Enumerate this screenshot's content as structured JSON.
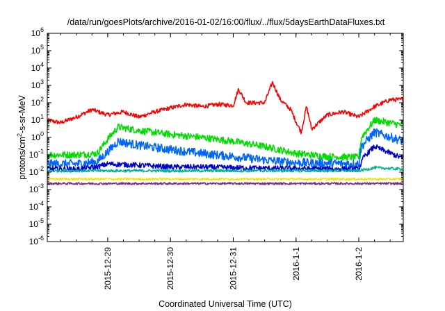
{
  "chart_data": {
    "type": "line",
    "title": "/data/run/goesPlots/archive/2016-01-02/16:00/flux/../flux/5daysEarthDataFluxes.txt",
    "xlabel": "Coordinated Universal Time (UTC)",
    "ylabel": "protons/cm²-s-sr-MeV",
    "ylabel_parts": {
      "base": "protons/cm",
      "sup": "2",
      "rest": "-s-sr-MeV"
    },
    "yscale": "log",
    "ylim": [
      1e-06,
      1000000.0
    ],
    "y_ticks": [
      {
        "value": 1e-06,
        "base": "10",
        "exp": "-6"
      },
      {
        "value": 1e-05,
        "base": "10",
        "exp": "-5"
      },
      {
        "value": 0.0001,
        "base": "10",
        "exp": "-4"
      },
      {
        "value": 0.001,
        "base": "10",
        "exp": "-3"
      },
      {
        "value": 0.01,
        "base": "10",
        "exp": "-2"
      },
      {
        "value": 0.1,
        "base": "10",
        "exp": "-1"
      },
      {
        "value": 1,
        "base": "10",
        "exp": "0"
      },
      {
        "value": 10.0,
        "base": "10",
        "exp": "1"
      },
      {
        "value": 100.0,
        "base": "10",
        "exp": "2"
      },
      {
        "value": 1000.0,
        "base": "10",
        "exp": "3"
      },
      {
        "value": 10000.0,
        "base": "10",
        "exp": "4"
      },
      {
        "value": 100000.0,
        "base": "10",
        "exp": "5"
      },
      {
        "value": 1000000.0,
        "base": "10",
        "exp": "6"
      }
    ],
    "xlim": [
      "2015-12-28 00:54",
      "2016-01-02 17:00"
    ],
    "x_ticks": [
      {
        "value": "2015-12-29 00:00",
        "label": "2015-12-29"
      },
      {
        "value": "2015-12-30 00:00",
        "label": "2015-12-30"
      },
      {
        "value": "2015-12-31 00:00",
        "label": "2015-12-31"
      },
      {
        "value": "2016-01-01 00:00",
        "label": "2016-1-1"
      },
      {
        "value": "2016-01-02 00:00",
        "label": "2016-1-2"
      }
    ],
    "grid": false,
    "series": [
      {
        "color": "#ff0000",
        "noise": 0.12,
        "points": [
          [
            "2015-12-28 00:54",
            10
          ],
          [
            "2015-12-28 06:00",
            7
          ],
          [
            "2015-12-28 12:00",
            15
          ],
          [
            "2015-12-28 18:00",
            40
          ],
          [
            "2015-12-29 00:00",
            20
          ],
          [
            "2015-12-29 06:00",
            30
          ],
          [
            "2015-12-29 12:00",
            15
          ],
          [
            "2015-12-29 18:00",
            30
          ],
          [
            "2015-12-30 00:00",
            50
          ],
          [
            "2015-12-30 06:00",
            80
          ],
          [
            "2015-12-30 12:00",
            60
          ],
          [
            "2015-12-30 18:00",
            80
          ],
          [
            "2015-12-31 00:00",
            70
          ],
          [
            "2015-12-31 02:00",
            600
          ],
          [
            "2015-12-31 05:00",
            100
          ],
          [
            "2015-12-31 12:00",
            100
          ],
          [
            "2015-12-31 15:00",
            1500
          ],
          [
            "2015-12-31 18:00",
            150
          ],
          [
            "2015-12-31 22:00",
            40
          ],
          [
            "2016-01-01 00:00",
            8
          ],
          [
            "2016-01-01 02:00",
            2
          ],
          [
            "2016-01-01 04:00",
            60
          ],
          [
            "2016-01-01 06:00",
            3
          ],
          [
            "2016-01-01 09:00",
            8
          ],
          [
            "2016-01-01 12:00",
            20
          ],
          [
            "2016-01-01 18:00",
            30
          ],
          [
            "2016-01-02 00:00",
            15
          ],
          [
            "2016-01-02 06:00",
            60
          ],
          [
            "2016-01-02 12:00",
            150
          ],
          [
            "2016-01-02 17:00",
            150
          ]
        ]
      },
      {
        "color": "#00dd00",
        "noise": 0.2,
        "points": [
          [
            "2015-12-28 00:54",
            0.1
          ],
          [
            "2015-12-28 12:00",
            0.1
          ],
          [
            "2015-12-28 20:00",
            0.12
          ],
          [
            "2015-12-29 00:00",
            0.8
          ],
          [
            "2015-12-29 04:00",
            4
          ],
          [
            "2015-12-29 12:00",
            2.5
          ],
          [
            "2015-12-30 00:00",
            1.5
          ],
          [
            "2015-12-30 12:00",
            1
          ],
          [
            "2015-12-31 00:00",
            0.6
          ],
          [
            "2015-12-31 12:00",
            0.3
          ],
          [
            "2016-01-01 00:00",
            0.12
          ],
          [
            "2016-01-01 12:00",
            0.08
          ],
          [
            "2016-01-02 00:00",
            0.07
          ],
          [
            "2016-01-02 01:00",
            1
          ],
          [
            "2016-01-02 06:00",
            10
          ],
          [
            "2016-01-02 17:00",
            5
          ]
        ]
      },
      {
        "color": "#0066ff",
        "noise": 0.25,
        "points": [
          [
            "2015-12-28 00:54",
            0.03
          ],
          [
            "2015-12-28 12:00",
            0.03
          ],
          [
            "2015-12-28 20:00",
            0.04
          ],
          [
            "2015-12-29 00:00",
            0.15
          ],
          [
            "2015-12-29 04:00",
            0.6
          ],
          [
            "2015-12-29 12:00",
            0.35
          ],
          [
            "2015-12-30 00:00",
            0.2
          ],
          [
            "2015-12-30 12:00",
            0.12
          ],
          [
            "2015-12-31 00:00",
            0.08
          ],
          [
            "2015-12-31 12:00",
            0.05
          ],
          [
            "2016-01-01 00:00",
            0.035
          ],
          [
            "2016-01-02 00:00",
            0.03
          ],
          [
            "2016-01-02 01:00",
            0.3
          ],
          [
            "2016-01-02 06:00",
            2
          ],
          [
            "2016-01-02 17:00",
            0.6
          ]
        ]
      },
      {
        "color": "#0000cc",
        "noise": 0.15,
        "points": [
          [
            "2015-12-28 00:54",
            0.015
          ],
          [
            "2015-12-28 12:00",
            0.015
          ],
          [
            "2015-12-28 20:00",
            0.02
          ],
          [
            "2015-12-29 00:00",
            0.03
          ],
          [
            "2015-12-29 12:00",
            0.025
          ],
          [
            "2015-12-30 00:00",
            0.02
          ],
          [
            "2015-12-30 12:00",
            0.02
          ],
          [
            "2015-12-31 00:00",
            0.018
          ],
          [
            "2016-01-01 00:00",
            0.016
          ],
          [
            "2016-01-02 00:00",
            0.015
          ],
          [
            "2016-01-02 02:00",
            0.08
          ],
          [
            "2016-01-02 06:00",
            0.3
          ],
          [
            "2016-01-02 17:00",
            0.06
          ]
        ]
      },
      {
        "color": "#00b39b",
        "noise": 0.08,
        "points": [
          [
            "2015-12-28 00:54",
            0.012
          ],
          [
            "2015-12-29 00:00",
            0.012
          ],
          [
            "2015-12-30 00:00",
            0.012
          ],
          [
            "2015-12-31 00:00",
            0.012
          ],
          [
            "2016-01-01 00:00",
            0.012
          ],
          [
            "2016-01-02 00:00",
            0.012
          ],
          [
            "2016-01-02 06:00",
            0.018
          ],
          [
            "2016-01-02 17:00",
            0.015
          ]
        ]
      },
      {
        "color": "#f2e600",
        "noise": 0.06,
        "points": [
          [
            "2015-12-28 00:54",
            0.004
          ],
          [
            "2016-01-02 17:00",
            0.004
          ]
        ]
      },
      {
        "color": "#7f2a7f",
        "noise": 0.06,
        "points": [
          [
            "2015-12-28 00:54",
            0.0022
          ],
          [
            "2016-01-02 17:00",
            0.0022
          ]
        ]
      }
    ]
  }
}
